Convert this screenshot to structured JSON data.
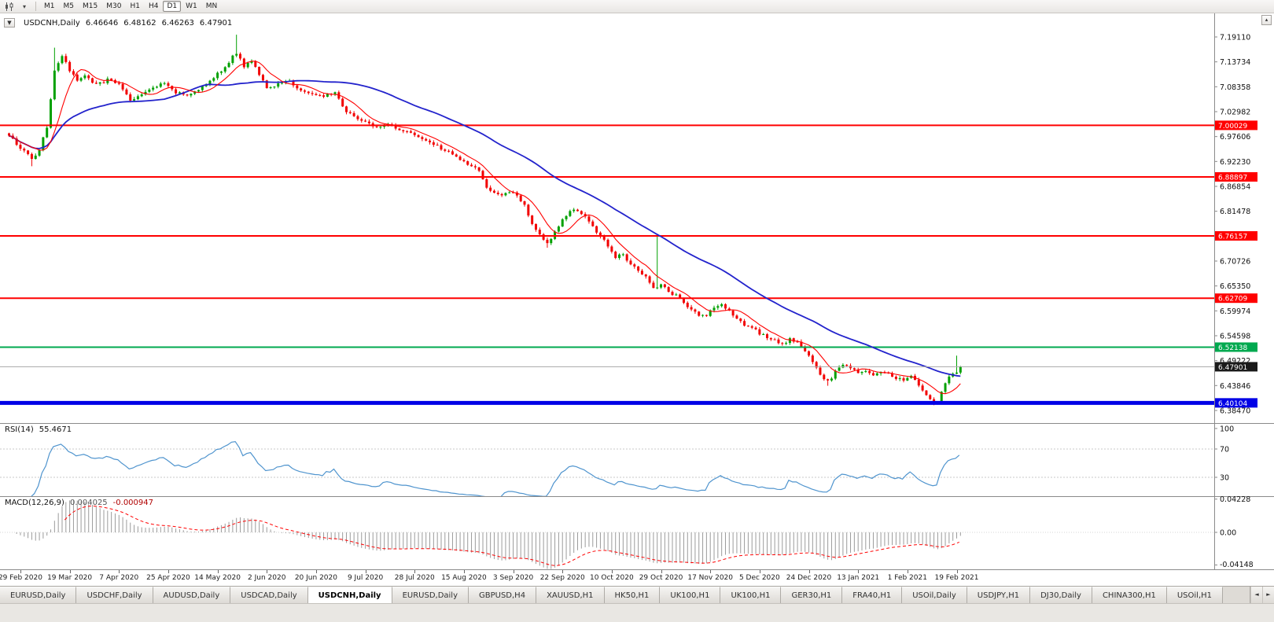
{
  "icons": {
    "title_dropdown": "▼",
    "toolbar_dropdown": "▾",
    "scroll_up": "▴",
    "tab_scroll_left": "◄",
    "tab_scroll_right": "►"
  },
  "toolbar": {
    "timeframes": [
      {
        "label": "M1",
        "active": false
      },
      {
        "label": "M5",
        "active": false
      },
      {
        "label": "M15",
        "active": false
      },
      {
        "label": "M30",
        "active": false
      },
      {
        "label": "H1",
        "active": false
      },
      {
        "label": "H4",
        "active": false
      },
      {
        "label": "D1",
        "active": true
      },
      {
        "label": "W1",
        "active": false
      },
      {
        "label": "MN",
        "active": false
      }
    ]
  },
  "chart": {
    "symbol_title": "USDCNH,Daily",
    "ohlc": {
      "o": "6.46646",
      "h": "6.48162",
      "l": "6.46263",
      "c": "6.47901"
    },
    "horizontal_lines": [
      {
        "price": 7.00029,
        "label": "7.00029",
        "color": "#ff0000",
        "width": 2
      },
      {
        "price": 6.88897,
        "label": "6.88897",
        "color": "#ff0000",
        "width": 2
      },
      {
        "price": 6.76157,
        "label": "6.76157",
        "color": "#ff0000",
        "width": 2
      },
      {
        "price": 6.62709,
        "label": "6.62709",
        "color": "#ff0000",
        "width": 2
      },
      {
        "price": 6.52138,
        "label": "6.52138",
        "color": "#00a94f",
        "width": 2
      },
      {
        "price": 6.40104,
        "label": "6.40104",
        "color": "#0000e6",
        "width": 5
      }
    ],
    "current_price": {
      "price": 6.47901,
      "label": "6.47901",
      "line_color": "#a8a8a8",
      "badge_color": "#1a1a1a"
    },
    "y_axis_labels": [
      "7.19110",
      "7.13734",
      "7.08358",
      "7.02982",
      "6.97606",
      "6.92230",
      "6.86854",
      "6.81478",
      "6.76102",
      "6.70726",
      "6.65350",
      "6.59974",
      "6.54598",
      "6.49222",
      "6.43846",
      "6.38470"
    ]
  },
  "chart_data": {
    "type": "candlestick",
    "symbol": "USDCNH",
    "timeframe": "Daily",
    "count": 252,
    "last_close": 6.47901,
    "up_color": "#00a000",
    "down_color": "#f20000",
    "ma_fast": {
      "period": 8,
      "color": "#ff0000"
    },
    "ma_slow": {
      "period": 42,
      "color": "#2323cc"
    },
    "keypoints": [
      [
        0,
        6.978
      ],
      [
        3,
        6.952
      ],
      [
        6,
        6.93
      ],
      [
        8,
        6.945
      ],
      [
        10,
        6.998
      ],
      [
        12,
        7.115
      ],
      [
        14,
        7.15
      ],
      [
        16,
        7.118
      ],
      [
        18,
        7.095
      ],
      [
        20,
        7.108
      ],
      [
        23,
        7.088
      ],
      [
        26,
        7.098
      ],
      [
        29,
        7.09
      ],
      [
        32,
        7.055
      ],
      [
        35,
        7.068
      ],
      [
        38,
        7.082
      ],
      [
        41,
        7.092
      ],
      [
        44,
        7.072
      ],
      [
        47,
        7.062
      ],
      [
        50,
        7.078
      ],
      [
        53,
        7.098
      ],
      [
        56,
        7.118
      ],
      [
        58,
        7.138
      ],
      [
        60,
        7.158
      ],
      [
        62,
        7.128
      ],
      [
        64,
        7.138
      ],
      [
        66,
        7.112
      ],
      [
        68,
        7.078
      ],
      [
        71,
        7.088
      ],
      [
        74,
        7.095
      ],
      [
        77,
        7.075
      ],
      [
        80,
        7.068
      ],
      [
        83,
        7.062
      ],
      [
        86,
        7.072
      ],
      [
        88,
        7.038
      ],
      [
        91,
        7.018
      ],
      [
        94,
        7.006
      ],
      [
        97,
        6.996
      ],
      [
        100,
        7.006
      ],
      [
        103,
        6.991
      ],
      [
        106,
        6.984
      ],
      [
        109,
        6.972
      ],
      [
        112,
        6.958
      ],
      [
        115,
        6.946
      ],
      [
        118,
        6.932
      ],
      [
        121,
        6.916
      ],
      [
        124,
        6.902
      ],
      [
        126,
        6.868
      ],
      [
        128,
        6.852
      ],
      [
        130,
        6.846
      ],
      [
        132,
        6.858
      ],
      [
        134,
        6.846
      ],
      [
        136,
        6.826
      ],
      [
        138,
        6.79
      ],
      [
        140,
        6.762
      ],
      [
        142,
        6.748
      ],
      [
        144,
        6.768
      ],
      [
        146,
        6.796
      ],
      [
        148,
        6.812
      ],
      [
        150,
        6.818
      ],
      [
        152,
        6.802
      ],
      [
        154,
        6.782
      ],
      [
        156,
        6.762
      ],
      [
        158,
        6.742
      ],
      [
        160,
        6.716
      ],
      [
        162,
        6.722
      ],
      [
        164,
        6.7
      ],
      [
        166,
        6.686
      ],
      [
        168,
        6.672
      ],
      [
        170,
        6.648
      ],
      [
        172,
        6.658
      ],
      [
        174,
        6.642
      ],
      [
        176,
        6.632
      ],
      [
        178,
        6.618
      ],
      [
        180,
        6.602
      ],
      [
        182,
        6.588
      ],
      [
        184,
        6.592
      ],
      [
        186,
        6.604
      ],
      [
        188,
        6.612
      ],
      [
        190,
        6.598
      ],
      [
        192,
        6.582
      ],
      [
        194,
        6.57
      ],
      [
        196,
        6.562
      ],
      [
        198,
        6.552
      ],
      [
        200,
        6.544
      ],
      [
        202,
        6.536
      ],
      [
        204,
        6.528
      ],
      [
        206,
        6.538
      ],
      [
        208,
        6.532
      ],
      [
        210,
        6.512
      ],
      [
        212,
        6.492
      ],
      [
        214,
        6.462
      ],
      [
        216,
        6.446
      ],
      [
        218,
        6.468
      ],
      [
        220,
        6.482
      ],
      [
        222,
        6.474
      ],
      [
        224,
        6.466
      ],
      [
        226,
        6.472
      ],
      [
        228,
        6.462
      ],
      [
        230,
        6.47
      ],
      [
        232,
        6.462
      ],
      [
        234,
        6.456
      ],
      [
        236,
        6.448
      ],
      [
        238,
        6.458
      ],
      [
        240,
        6.438
      ],
      [
        242,
        6.416
      ],
      [
        244,
        6.402
      ],
      [
        245,
        6.406
      ],
      [
        246,
        6.426
      ],
      [
        247,
        6.446
      ],
      [
        248,
        6.458
      ],
      [
        249,
        6.464
      ],
      [
        250,
        6.46646
      ],
      [
        251,
        6.47901
      ]
    ],
    "spikes": [
      {
        "i": 6,
        "low": 6.912
      },
      {
        "i": 12,
        "high": 7.168
      },
      {
        "i": 60,
        "high": 7.196
      },
      {
        "i": 142,
        "low": 6.736
      },
      {
        "i": 171,
        "high": 6.76
      },
      {
        "i": 216,
        "low": 6.438
      },
      {
        "i": 244,
        "low": 6.396
      },
      {
        "i": 250,
        "high": 6.503
      }
    ],
    "date_labels": [
      "29 Feb 2020",
      "19 Mar 2020",
      "7 Apr 2020",
      "25 Apr 2020",
      "14 May 2020",
      "2 Jun 2020",
      "20 Jun 2020",
      "9 Jul 2020",
      "28 Jul 2020",
      "15 Aug 2020",
      "3 Sep 2020",
      "22 Sep 2020",
      "10 Oct 2020",
      "29 Oct 2020",
      "17 Nov 2020",
      "5 Dec 2020",
      "24 Dec 2020",
      "13 Jan 2021",
      "1 Feb 2021",
      "19 Feb 2021"
    ]
  },
  "panels": {
    "rsi": {
      "name": "RSI(14)",
      "value": "55.4671",
      "line_color": "#4f94ce",
      "levels": [
        70,
        30
      ],
      "ticks": [
        {
          "v": 100,
          "label": "100"
        },
        {
          "v": 70,
          "label": "70"
        },
        {
          "v": 30,
          "label": "30"
        }
      ]
    },
    "macd": {
      "name": "MACD(12,26,9)",
      "main_value": "0.004025",
      "signal_value": "-0.000947",
      "bar_color": "#9b9b9b",
      "signal_color": "#ff0000",
      "ticks": [
        {
          "v": 0.04228,
          "label": "0.04228"
        },
        {
          "v": 0,
          "label": "0.00"
        },
        {
          "v": -0.04148,
          "label": "-0.04148"
        }
      ]
    }
  },
  "tabs": {
    "items": [
      {
        "label": "EURUSD,Daily",
        "active": false
      },
      {
        "label": "USDCHF,Daily",
        "active": false
      },
      {
        "label": "AUDUSD,Daily",
        "active": false
      },
      {
        "label": "USDCAD,Daily",
        "active": false
      },
      {
        "label": "USDCNH,Daily",
        "active": true
      },
      {
        "label": "EURUSD,Daily",
        "active": false
      },
      {
        "label": "GBPUSD,H4",
        "active": false
      },
      {
        "label": "XAUUSD,H1",
        "active": false
      },
      {
        "label": "HK50,H1",
        "active": false
      },
      {
        "label": "UK100,H1",
        "active": false
      },
      {
        "label": "UK100,H1",
        "active": false
      },
      {
        "label": "GER30,H1",
        "active": false
      },
      {
        "label": "FRA40,H1",
        "active": false
      },
      {
        "label": "USOil,Daily",
        "active": false
      },
      {
        "label": "USDJPY,H1",
        "active": false
      },
      {
        "label": "DJ30,Daily",
        "active": false
      },
      {
        "label": "CHINA300,H1",
        "active": false
      },
      {
        "label": "USOil,H1",
        "active": false
      }
    ]
  }
}
